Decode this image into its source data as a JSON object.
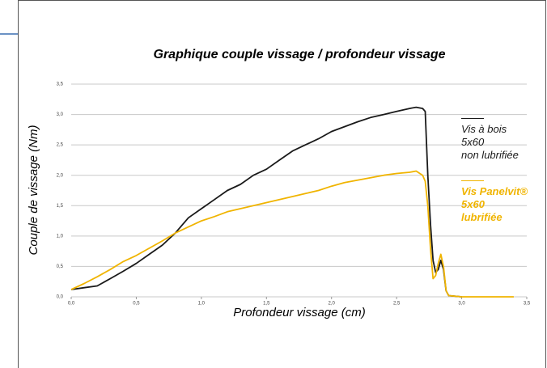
{
  "chart_data": {
    "type": "line",
    "title": "Graphique couple vissage / profondeur vissage",
    "x_label": "Profondeur vissage (cm)",
    "y_label": "Couple de vissage (Nm)",
    "x": [
      0,
      0.1,
      0.2,
      0.3,
      0.4,
      0.5,
      0.6,
      0.7,
      0.8,
      0.9,
      1.0,
      1.1,
      1.2,
      1.3,
      1.4,
      1.5,
      1.6,
      1.7,
      1.8,
      1.9,
      2.0,
      2.1,
      2.2,
      2.3,
      2.4,
      2.5,
      2.6,
      2.65,
      2.7,
      2.72,
      2.74,
      2.76,
      2.78,
      2.8,
      2.82,
      2.84,
      2.86,
      2.88,
      2.9,
      3.0,
      3.2,
      3.4
    ],
    "series": [
      {
        "name": "Vis à bois\n5x60\nnon lubrifiée",
        "color": "#1a1a1a",
        "values": [
          0.12,
          0.15,
          0.18,
          0.3,
          0.42,
          0.55,
          0.7,
          0.85,
          1.05,
          1.3,
          1.45,
          1.6,
          1.75,
          1.85,
          2.0,
          2.1,
          2.25,
          2.4,
          2.5,
          2.6,
          2.72,
          2.8,
          2.88,
          2.95,
          3.0,
          3.05,
          3.1,
          3.12,
          3.1,
          3.05,
          2.0,
          1.2,
          0.6,
          0.4,
          0.45,
          0.6,
          0.45,
          0.1,
          0.02,
          0,
          null,
          null
        ]
      },
      {
        "name": "Vis Panelvit®\n5x60\nlubrifiée",
        "color": "#f0b400",
        "values": [
          0.12,
          0.22,
          0.33,
          0.45,
          0.58,
          0.68,
          0.8,
          0.92,
          1.05,
          1.15,
          1.25,
          1.32,
          1.4,
          1.45,
          1.5,
          1.55,
          1.6,
          1.65,
          1.7,
          1.75,
          1.82,
          1.88,
          1.92,
          1.96,
          2.0,
          2.03,
          2.05,
          2.07,
          2.0,
          1.9,
          1.5,
          0.8,
          0.3,
          0.35,
          0.55,
          0.7,
          0.5,
          0.1,
          0.02,
          0,
          0,
          0
        ]
      }
    ],
    "xlim": [
      0,
      3.5
    ],
    "xticks": [
      {
        "value": 0,
        "label": "0,0"
      },
      {
        "value": 0.5,
        "label": "0,5"
      },
      {
        "value": 1,
        "label": "1,0"
      },
      {
        "value": 1.5,
        "label": "1,5"
      },
      {
        "value": 2,
        "label": "2,0"
      },
      {
        "value": 2.5,
        "label": "2,5"
      },
      {
        "value": 3,
        "label": "3,0"
      },
      {
        "value": 3.5,
        "label": "3,5"
      }
    ],
    "ylim": [
      0,
      3.5
    ],
    "yticks": [
      {
        "value": 0,
        "label": "0,0"
      },
      {
        "value": 0.5,
        "label": "0,5"
      },
      {
        "value": 1,
        "label": "1,0"
      },
      {
        "value": 1.5,
        "label": "1,5"
      },
      {
        "value": 2,
        "label": "2,0"
      },
      {
        "value": 2.5,
        "label": "2,5"
      },
      {
        "value": 3,
        "label": "3,0"
      },
      {
        "value": 3.5,
        "label": "3,5"
      }
    ],
    "grid": true
  }
}
